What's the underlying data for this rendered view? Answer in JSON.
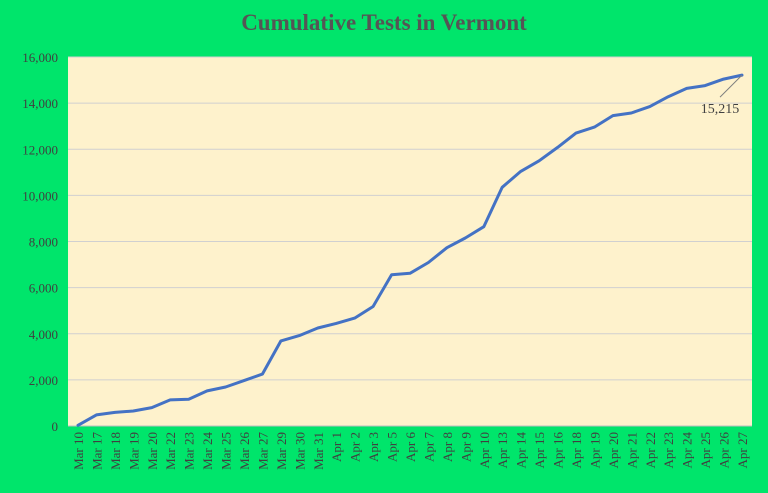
{
  "chart_data": {
    "type": "line",
    "title": "Cumulative Tests in Vermont",
    "xlabel": "",
    "ylabel": "",
    "ylim": [
      0,
      16000
    ],
    "yticks": [
      "0",
      "2,000",
      "4,000",
      "6,000",
      "8,000",
      "10,000",
      "12,000",
      "14,000",
      "16,000"
    ],
    "grid": true,
    "legend": "none",
    "categories": [
      "Mar 10",
      "Mar 17",
      "Mar 18",
      "Mar 19",
      "Mar 20",
      "Mar 22",
      "Mar 23",
      "Mar 24",
      "Mar 25",
      "Mar 26",
      "Mar 27",
      "Mar 29",
      "Mar 30",
      "Mar 31",
      "Apr 1",
      "Apr 2",
      "Apr 3",
      "Apr 5",
      "Apr 6",
      "Apr 7",
      "Apr 8",
      "Apr 9",
      "Apr 10",
      "Apr 13",
      "Apr 14",
      "Apr 15",
      "Apr 16",
      "Apr 18",
      "Apr 19",
      "Apr 20",
      "Apr 21",
      "Apr 22",
      "Apr 23",
      "Apr 24",
      "Apr 25",
      "Apr 26",
      "Apr 27"
    ],
    "series": [
      {
        "values": [
          30,
          480,
          590,
          650,
          800,
          1130,
          1160,
          1520,
          1690,
          1970,
          2250,
          3690,
          3920,
          4250,
          4450,
          4680,
          5180,
          6560,
          6620,
          7090,
          7730,
          8150,
          8640,
          10350,
          11040,
          11500,
          12080,
          12700,
          12960,
          13460,
          13570,
          13850,
          14280,
          14640,
          14760,
          15040,
          15215
        ],
        "color": "#4472c4"
      }
    ],
    "annotations": [
      {
        "text": "15,215",
        "category": "Apr 27",
        "value": 15215
      }
    ]
  },
  "colors": {
    "background": "#00e56b",
    "plot_area": "#fef2cc",
    "line": "#4472c4",
    "grid": "#d0d0d0"
  }
}
